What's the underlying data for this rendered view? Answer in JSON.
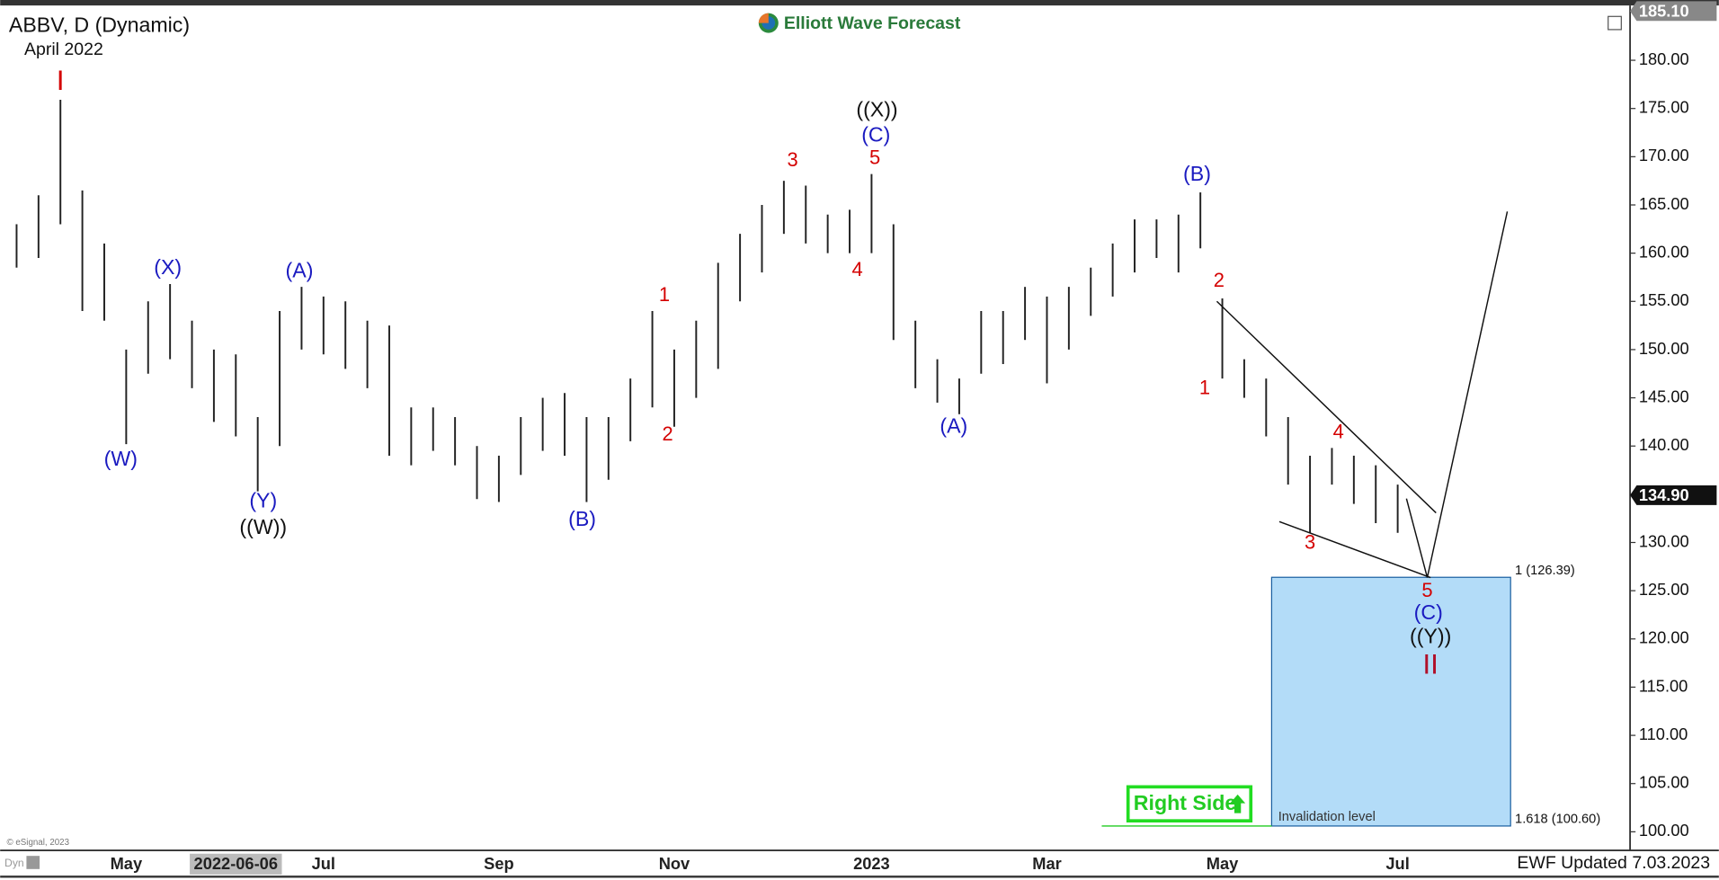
{
  "chart_data": {
    "type": "hilo",
    "title": "ABBV, D (Dynamic)",
    "subtitle": "April 2022",
    "brand": "Elliott Wave Forecast",
    "footer": "EWF Updated 7.03.2023",
    "copyright": "© eSignal, 2023",
    "mode_label": "Dyn",
    "color": "#222222",
    "grid": false,
    "categories": [
      null,
      null,
      null,
      null,
      null,
      "May",
      null,
      null,
      null,
      null,
      "2022-06-06",
      null,
      null,
      null,
      "Jul",
      null,
      null,
      null,
      null,
      null,
      null,
      null,
      "Sep",
      null,
      null,
      null,
      null,
      null,
      null,
      null,
      "Nov",
      null,
      null,
      null,
      null,
      null,
      null,
      null,
      null,
      "2023",
      null,
      null,
      null,
      null,
      null,
      null,
      null,
      "Mar",
      null,
      null,
      null,
      null,
      null,
      null,
      null,
      "May",
      null,
      null,
      null,
      null,
      null,
      null,
      null,
      "Jul"
    ],
    "highlighted_category": 10,
    "high": [
      163,
      166,
      175.9,
      166.5,
      161,
      150,
      155,
      156.8,
      153,
      150,
      149.5,
      143,
      154,
      156.5,
      155.5,
      155,
      153,
      152.5,
      144,
      144,
      143,
      140,
      139,
      143,
      145,
      145.5,
      143,
      143,
      147,
      154,
      150,
      153,
      159,
      162,
      165,
      167.5,
      167,
      164,
      164.5,
      168.2,
      163,
      153,
      149,
      147,
      154,
      154,
      156.5,
      155.5,
      156.5,
      158.5,
      161,
      163.5,
      163.5,
      164,
      166.3,
      155.3,
      149,
      147,
      143,
      139,
      139.8,
      139,
      138,
      136
    ],
    "low": [
      158.5,
      159.5,
      163,
      154,
      153,
      140.2,
      147.5,
      149,
      146,
      142.5,
      141,
      135.3,
      140,
      150,
      149.5,
      148,
      146,
      139,
      138,
      139.5,
      138,
      134.5,
      134.2,
      137,
      139.5,
      139,
      134.2,
      136.5,
      140.5,
      144,
      142,
      145,
      148,
      155,
      158,
      162,
      161,
      160,
      160,
      160,
      151,
      146,
      144.5,
      143.3,
      147.5,
      148.5,
      151,
      146.5,
      150,
      153.5,
      155.5,
      158,
      159.5,
      158,
      160.5,
      147,
      145,
      141,
      136,
      131,
      136,
      134,
      132,
      131
    ],
    "ylim": [
      98.07,
      186.25
    ],
    "yticks": [
      {
        "value": 100,
        "label": "100.00"
      },
      {
        "value": 105,
        "label": "105.00"
      },
      {
        "value": 110,
        "label": "110.00"
      },
      {
        "value": 115,
        "label": "115.00"
      },
      {
        "value": 120,
        "label": "120.00"
      },
      {
        "value": 125,
        "label": "125.00"
      },
      {
        "value": 130,
        "label": "130.00"
      },
      {
        "value": 135,
        "label": "135.00"
      },
      {
        "value": 140,
        "label": "140.00"
      },
      {
        "value": 145,
        "label": "145.00"
      },
      {
        "value": 150,
        "label": "150.00"
      },
      {
        "value": 155,
        "label": "155.00"
      },
      {
        "value": 160,
        "label": "160.00"
      },
      {
        "value": 165,
        "label": "165.00"
      },
      {
        "value": 170,
        "label": "170.00"
      },
      {
        "value": 175,
        "label": "175.00"
      },
      {
        "value": 180,
        "label": "180.00"
      }
    ],
    "top_price": {
      "value": 185.1,
      "label": "185.10"
    },
    "last_price": {
      "value": 134.9,
      "label": "134.90"
    },
    "target_zone": {
      "high": 126.39,
      "low": 100.6,
      "high_label": "1 (126.39)",
      "low_label": "1.618 (100.60)",
      "note": "Invalidation level",
      "color": "#b3dcf8"
    },
    "right_side": "Right Side",
    "wave_labels": [
      {
        "text": "I",
        "color": "#d40000"
      },
      {
        "text": "(W)",
        "color": "#1a1ac0"
      },
      {
        "text": "(X)",
        "color": "#1a1ac0"
      },
      {
        "text": "(Y)",
        "color": "#1a1ac0"
      },
      {
        "text": "((W))",
        "color": "#111111"
      },
      {
        "text": "(A)",
        "color": "#1a1ac0"
      },
      {
        "text": "(B)",
        "color": "#1a1ac0"
      },
      {
        "text": "1",
        "color": "#d40000"
      },
      {
        "text": "2",
        "color": "#d40000"
      },
      {
        "text": "3",
        "color": "#d40000"
      },
      {
        "text": "4",
        "color": "#d40000"
      },
      {
        "text": "5",
        "color": "#d40000"
      },
      {
        "text": "(C)",
        "color": "#1a1ac0"
      },
      {
        "text": "((X))",
        "color": "#111111"
      },
      {
        "text": "(A)",
        "color": "#1a1ac0"
      },
      {
        "text": "(B)",
        "color": "#1a1ac0"
      },
      {
        "text": "2",
        "color": "#d40000"
      },
      {
        "text": "1",
        "color": "#d40000"
      },
      {
        "text": "3",
        "color": "#d40000"
      },
      {
        "text": "4",
        "color": "#d40000"
      },
      {
        "text": "5",
        "color": "#d40000"
      },
      {
        "text": "(C)",
        "color": "#1a1ac0"
      },
      {
        "text": "((Y))",
        "color": "#111111"
      },
      {
        "text": "II",
        "color": "#b0102a"
      }
    ]
  }
}
